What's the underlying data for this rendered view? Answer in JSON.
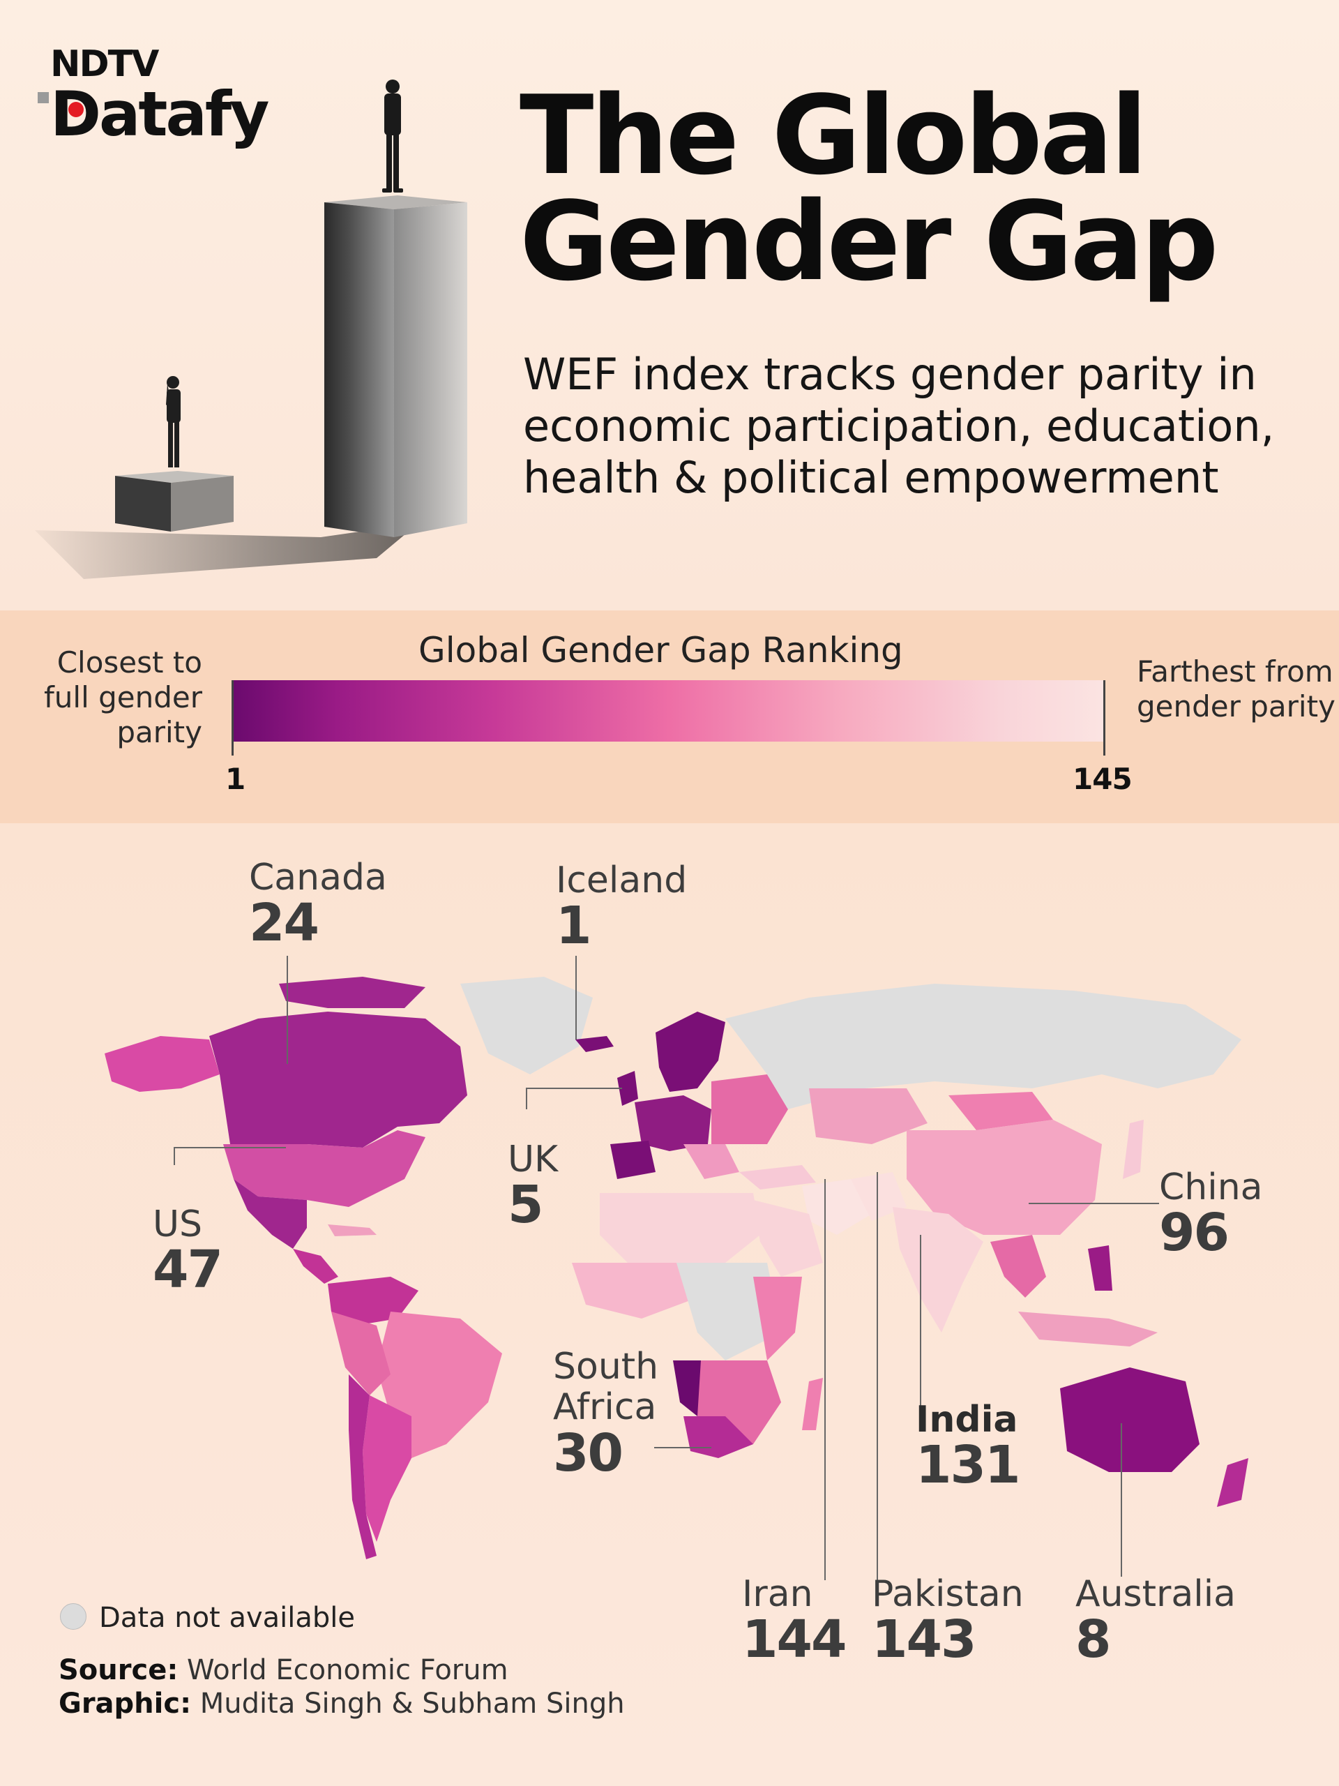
{
  "brand": {
    "name_top": "NDTV",
    "name_bottom": "Datafy"
  },
  "header": {
    "title_line1": "The Global",
    "title_line2": "Gender Gap",
    "subtitle": "WEF index tracks gender parity in economic participation, education, health & political empowerment"
  },
  "legend": {
    "title": "Global Gender Gap Ranking",
    "left_label": "Closest to full gender parity",
    "right_label": "Farthest from gender parity",
    "min": "1",
    "max": "145",
    "color_start": "#6b0a6e",
    "color_end": "#fbe4e2",
    "no_data_color": "#dcdcdc"
  },
  "callouts": {
    "canada": {
      "name": "Canada",
      "rank": "24"
    },
    "iceland": {
      "name": "Iceland",
      "rank": "1"
    },
    "uk": {
      "name": "UK",
      "rank": "5"
    },
    "china": {
      "name": "China",
      "rank": "96"
    },
    "us": {
      "name": "US",
      "rank": "47"
    },
    "south_africa": {
      "name": "South Africa",
      "rank": "30"
    },
    "india": {
      "name": "India",
      "rank": "131"
    },
    "iran": {
      "name": "Iran",
      "rank": "144"
    },
    "pakistan": {
      "name": "Pakistan",
      "rank": "143"
    },
    "australia": {
      "name": "Australia",
      "rank": "8"
    }
  },
  "footer": {
    "no_data_label": "Data not available",
    "source_label": "Source:",
    "source_value": "World Economic Forum",
    "graphic_label": "Graphic:",
    "graphic_value": "Mudita Singh & Subham Singh"
  }
}
